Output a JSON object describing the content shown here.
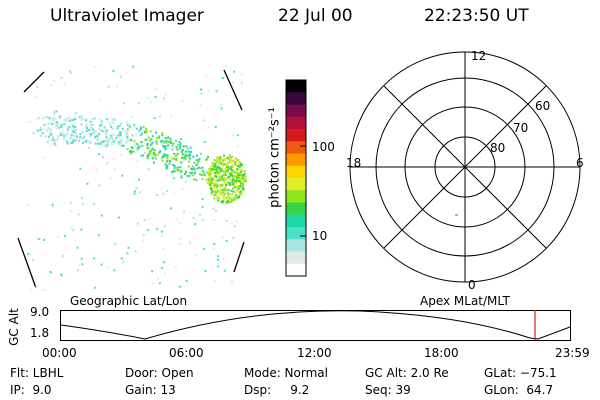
{
  "header": {
    "title": "Ultraviolet Imager",
    "date": "22 Jul 00",
    "time": "22:23:50 UT"
  },
  "colorbar": {
    "label": "photon cm⁻²s⁻¹",
    "ticks": [
      "100",
      "10"
    ]
  },
  "polar": {
    "mlt_labels": [
      "12",
      "18",
      "6",
      "0"
    ],
    "lat_labels": [
      "60",
      "70",
      "80"
    ]
  },
  "orbit": {
    "left_title": "Geographic Lat/Lon",
    "right_title": "Apex MLat/MLT",
    "axis_label": "GC Alt",
    "y_ticks": [
      "9.0",
      "1.8"
    ],
    "x_ticks": [
      "00:00",
      "06:00",
      "12:00",
      "18:00",
      "23:59"
    ]
  },
  "info": {
    "row1": [
      "Flt: LBHL",
      "Door: Open",
      "Mode: Normal",
      "GC Alt: 2.0 Re",
      "GLat: −75.1"
    ],
    "row2": [
      "IP:  9.0",
      "Gain: 13",
      "Dsp:     9.2",
      "Seq: 39",
      "GLon:  64.7"
    ]
  },
  "colors": {
    "scale": [
      "#ffffff",
      "#dfeaea",
      "#a9e6e6",
      "#4ce0c8",
      "#1dd7a8",
      "#37d44a",
      "#8ee51c",
      "#e0ee2a",
      "#ffd700",
      "#ff9900",
      "#f05a10",
      "#d41a1a",
      "#b0103a",
      "#7a0a4a",
      "#3a0640",
      "#000000"
    ],
    "marker": "#cc2222"
  }
}
